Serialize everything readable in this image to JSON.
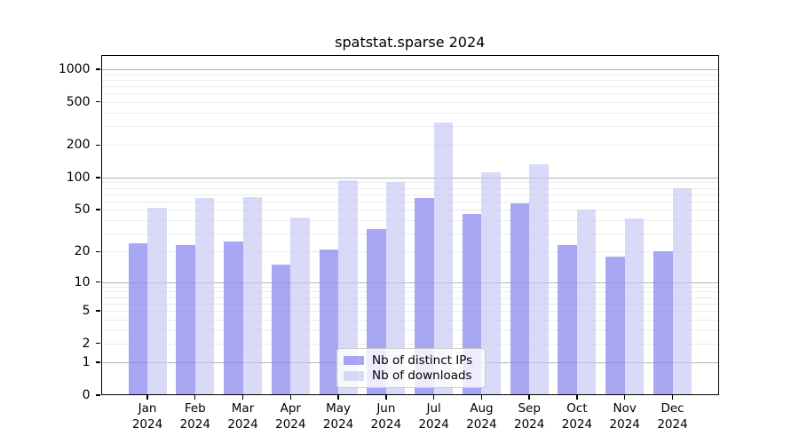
{
  "chart_data": {
    "type": "bar",
    "title": "spatstat.sparse 2024",
    "categories": [
      "Jan",
      "Feb",
      "Mar",
      "Apr",
      "May",
      "Jun",
      "Jul",
      "Aug",
      "Sep",
      "Oct",
      "Nov",
      "Dec"
    ],
    "year_label": "2024",
    "series": [
      {
        "name": "Nb of distinct IPs",
        "color": "rgba(138,138,240,0.75)",
        "values": [
          24,
          23,
          25,
          15,
          21,
          33,
          64,
          46,
          57,
          23,
          18,
          20
        ]
      },
      {
        "name": "Nb of downloads",
        "color": "rgba(197,197,245,0.65)",
        "values": [
          52,
          64,
          66,
          42,
          95,
          91,
          320,
          112,
          133,
          50,
          41,
          79
        ]
      }
    ],
    "yscale": "log10(x+1)",
    "ylim": [
      0,
      1353
    ],
    "yticks": [
      0,
      1,
      2,
      5,
      10,
      20,
      50,
      100,
      200,
      500,
      1000
    ],
    "grid": {
      "major": [
        1,
        10,
        100,
        1000
      ],
      "minor": [
        2,
        3,
        4,
        5,
        6,
        7,
        8,
        9,
        20,
        30,
        40,
        50,
        60,
        70,
        80,
        90,
        200,
        300,
        400,
        500,
        600,
        700,
        800,
        900
      ]
    },
    "legend_position": "lower center",
    "axis_color": "#000000",
    "major_grid_color": "#b4b4b4",
    "minor_grid_color": "#ebebeb"
  }
}
